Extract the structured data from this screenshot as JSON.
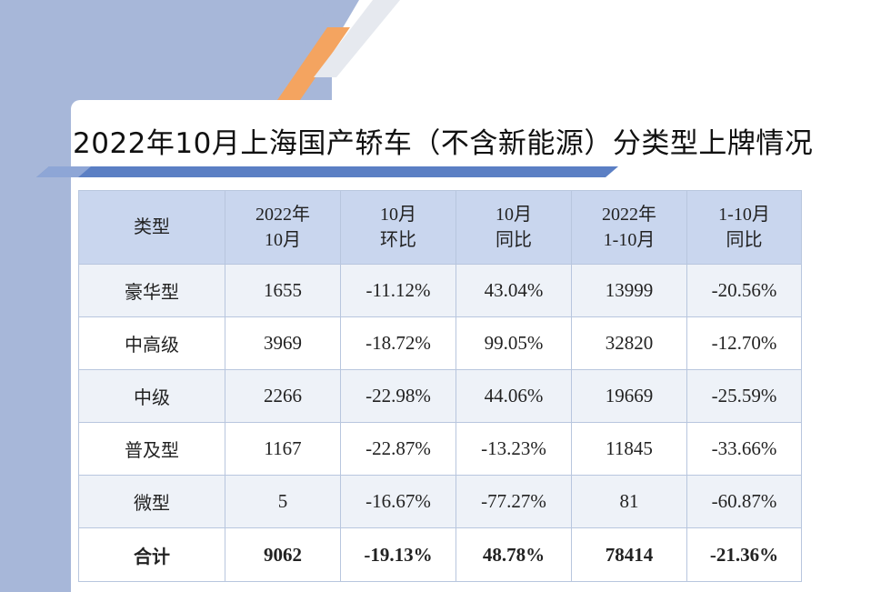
{
  "title": "2022年10月上海国产轿车（不含新能源）分类型上牌情况",
  "colors": {
    "background_panel": "#a7b7d9",
    "accent_orange": "#f4a460",
    "accent_blue": "#5b7fc4",
    "header_fill": "#c9d6ee",
    "row_alt_fill": "#eef2f8"
  },
  "table": {
    "headers": [
      [
        "类型"
      ],
      [
        "2022年",
        "10月"
      ],
      [
        "10月",
        "环比"
      ],
      [
        "10月",
        "同比"
      ],
      [
        "2022年",
        "1-10月"
      ],
      [
        "1-10月",
        "同比"
      ]
    ],
    "rows": [
      [
        "豪华型",
        "1655",
        "-11.12%",
        "43.04%",
        "13999",
        "-20.56%"
      ],
      [
        "中高级",
        "3969",
        "-18.72%",
        "99.05%",
        "32820",
        "-12.70%"
      ],
      [
        "中级",
        "2266",
        "-22.98%",
        "44.06%",
        "19669",
        "-25.59%"
      ],
      [
        "普及型",
        "1167",
        "-22.87%",
        "-13.23%",
        "11845",
        "-33.66%"
      ],
      [
        "微型",
        "5",
        "-16.67%",
        "-77.27%",
        "81",
        "-60.87%"
      ]
    ],
    "total": [
      "合计",
      "9062",
      "-19.13%",
      "48.78%",
      "78414",
      "-21.36%"
    ]
  }
}
